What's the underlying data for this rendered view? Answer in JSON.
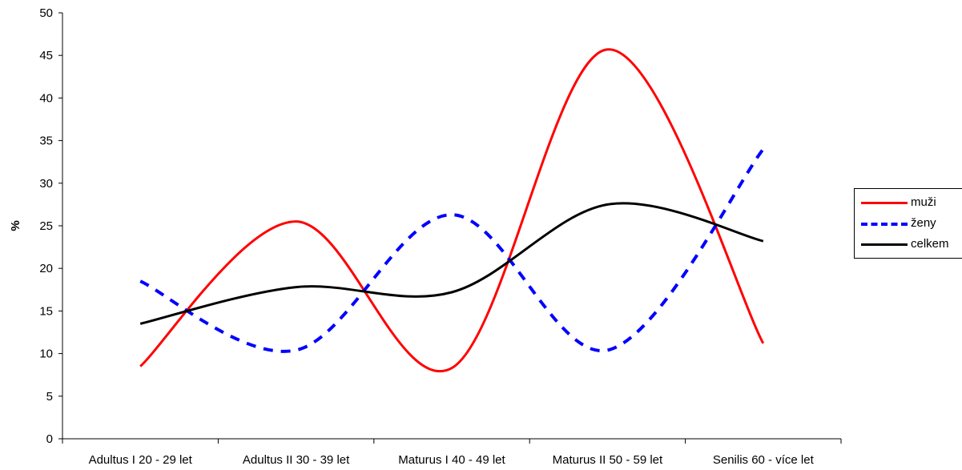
{
  "chart_data": {
    "type": "line",
    "categories": [
      "Adultus I 20 - 29 let",
      "Adultus II 30 - 39 let",
      "Maturus I 40 - 49 let",
      "Maturus II 50 - 59 let",
      "Senilis 60 - více let"
    ],
    "series": [
      {
        "name": "muži",
        "values": [
          8.5,
          25.5,
          8.3,
          45.7,
          11.2
        ],
        "color": "#ff0000",
        "dash": "solid"
      },
      {
        "name": "ženy",
        "values": [
          18.5,
          10.4,
          26.3,
          10.4,
          34.0
        ],
        "color": "#0000ff",
        "dash": "dashed"
      },
      {
        "name": "celkem",
        "values": [
          13.5,
          17.8,
          17.2,
          27.5,
          23.2
        ],
        "color": "#000000",
        "dash": "solid"
      }
    ],
    "title": "",
    "xlabel": "",
    "ylabel": "%",
    "ylim": [
      0,
      50
    ],
    "yticks": [
      0,
      5,
      10,
      15,
      20,
      25,
      30,
      35,
      40,
      45,
      50
    ],
    "smooth": true,
    "grid": false,
    "legend_position": "right"
  }
}
